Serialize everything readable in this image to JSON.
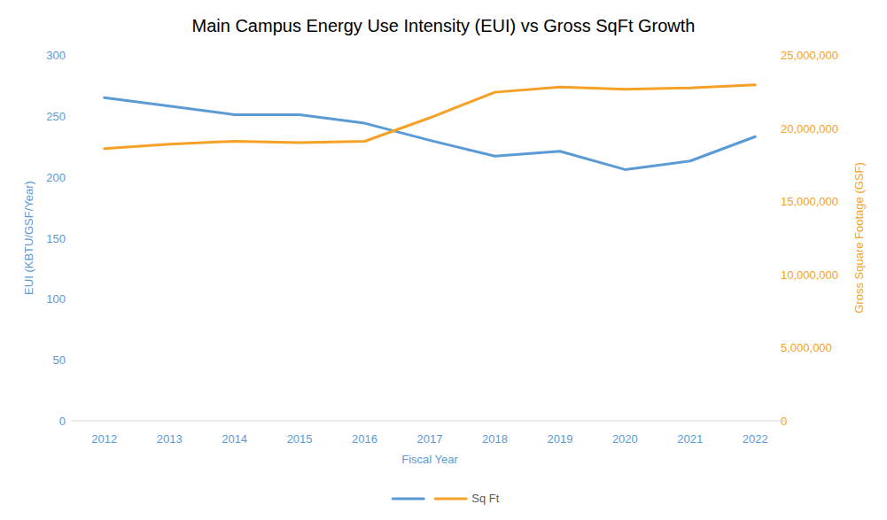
{
  "chart_data": {
    "type": "line",
    "title": "Main Campus Energy Use Intensity (EUI) vs Gross SqFt Growth",
    "x_label": "Fiscal Year",
    "y_label": "EUI (KBTU/GSF/Year)",
    "y2_label": "Gross Square Footage (GSF)",
    "categories": [
      "2012",
      "2013",
      "2014",
      "2015",
      "2016",
      "2017",
      "2018",
      "2019",
      "2020",
      "2021",
      "2022"
    ],
    "series": [
      {
        "color": "#5b9bd5",
        "values": [
          265,
          258,
          251,
          251,
          244,
          230,
          217,
          221,
          206,
          213,
          233
        ]
      },
      {
        "name": "Sq Ft",
        "color": "#f5a128",
        "axis": "y2",
        "values": [
          18600000,
          18900000,
          19100000,
          19000000,
          19100000,
          20700000,
          22450000,
          22800000,
          22650000,
          22750000,
          22950000
        ]
      }
    ],
    "ylim": [
      0,
      300
    ],
    "yticks": [
      0,
      50,
      100,
      150,
      200,
      250,
      300
    ],
    "y2lim": [
      0,
      25000000
    ],
    "y2ticks": [
      0,
      {
        "value": 5000000,
        "label": "5,000,000"
      },
      {
        "value": 10000000,
        "label": "10,000,000"
      },
      {
        "value": 15000000,
        "label": "15,000,000"
      },
      {
        "value": 20000000,
        "label": "20,000,000"
      },
      {
        "value": 25000000,
        "label": "25,000,000"
      }
    ],
    "grid": false,
    "legend": "bottom"
  }
}
